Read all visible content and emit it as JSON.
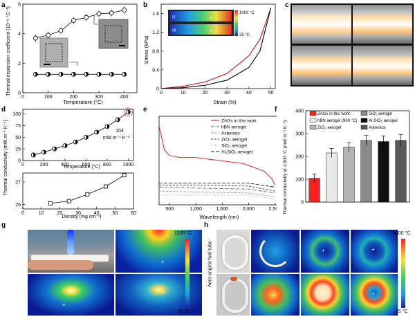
{
  "panel_letters": [
    "a",
    "b",
    "c",
    "d",
    "e",
    "f",
    "g",
    "h"
  ],
  "panel_a": {
    "ylabel": "Thermal expansion coefficient (10⁻⁶ °C⁻¹)",
    "xlabel": "Temperature (°C)"
  },
  "panel_b": {
    "ylabel": "Stress (kPa)",
    "xlabel": "Strain (%)",
    "cbar_max": "1000 °C",
    "cbar_min": "25 °C",
    "inset_tags": [
      "(i)",
      "(ii)"
    ]
  },
  "panel_d": {
    "top_xlabel": "Temperature (°C)",
    "bottom_xlabel": "Density (mg cm⁻³)",
    "ylabel": "Thermal conductivity (mW m⁻¹ K⁻¹)",
    "annotation_value": "104",
    "annotation_unit": "mW m⁻¹ K⁻¹"
  },
  "panel_e": {
    "xlabel": "Wavelength (nm)",
    "legend": [
      "ZAGs in this work",
      "hBN aerogel",
      "Asbestos",
      "ZrO₂ aerogel",
      "SiO₂ aerogel",
      "Al₂SiO₅ aerogel"
    ]
  },
  "panel_f": {
    "ylabel": "Thermal conductivity at 1,000 °C (mW m⁻¹ K⁻¹)",
    "legend": [
      "ZAGs in this work",
      "hBN aerogel (900 °C)",
      "ZrO₂ aerogel",
      "SiO₂ aerogel",
      "Al₂SiO₅ aerogel",
      "Asbestos"
    ]
  },
  "panel_g": {
    "cbar_max": "1300 °C",
    "cbar_min": "25 °C"
  },
  "panel_h": {
    "cbar_max": "1300 °C",
    "cbar_min": "25 °C",
    "side_label": "Aero engine fuel tube"
  },
  "chart_data": [
    {
      "type": "line",
      "panel": "a",
      "xlabel": "Temperature (°C)",
      "ylabel": "Thermal expansion coefficient (10⁻⁶ °C⁻¹)",
      "xlim": [
        0,
        450
      ],
      "ylim": [
        0,
        6
      ],
      "xticks": [
        0,
        100,
        200,
        300,
        400
      ],
      "yticks": [
        0,
        2,
        4,
        6
      ],
      "series": [
        {
          "x": [
            50,
            100,
            150,
            200,
            250,
            300,
            350,
            400
          ],
          "y": [
            3.7,
            3.9,
            4.2,
            4.9,
            5.1,
            5.35,
            5.4,
            5.6
          ]
        },
        {
          "x": [
            50,
            100,
            150,
            200,
            250,
            300,
            350,
            400
          ],
          "y": [
            1.25,
            1.25,
            1.25,
            1.25,
            1.25,
            1.25,
            1.25,
            1.25
          ]
        }
      ]
    },
    {
      "type": "line",
      "panel": "b",
      "xlabel": "Strain (%)",
      "ylabel": "Stress (kPa)",
      "xlim": [
        0,
        52
      ],
      "ylim": [
        0,
        1.8
      ],
      "xticks": [
        0,
        10,
        20,
        30,
        40,
        50
      ],
      "yticks": [
        0,
        0.4,
        0.8,
        1.2,
        1.6
      ],
      "series": [
        {
          "x": [
            0,
            10,
            20,
            30,
            40,
            45,
            50
          ],
          "y": [
            0,
            0.05,
            0.14,
            0.32,
            0.7,
            1.05,
            1.72
          ]
        },
        {
          "x": [
            0,
            10,
            20,
            30,
            40,
            45,
            50
          ],
          "y": [
            0,
            0.02,
            0.07,
            0.18,
            0.45,
            0.8,
            1.72
          ]
        }
      ]
    },
    {
      "type": "line",
      "panel": "d-top",
      "xlabel": "Temperature (°C)",
      "xlim": [
        0,
        1050
      ],
      "ylim": [
        0,
        110
      ],
      "xticks": [
        0,
        200,
        400,
        600,
        800,
        1000
      ],
      "yticks": [
        0,
        25,
        50,
        75,
        100
      ],
      "series": [
        {
          "x": [
            100,
            200,
            300,
            400,
            500,
            600,
            700,
            800,
            900,
            1000
          ],
          "y": [
            12,
            18,
            25,
            32,
            40,
            50,
            61,
            73,
            88,
            104
          ]
        }
      ]
    },
    {
      "type": "line",
      "panel": "d-bottom",
      "xlabel": "Density (mg cm⁻³)",
      "xlim": [
        0,
        60
      ],
      "ylim": [
        25.8,
        27.4
      ],
      "xticks": [
        0,
        10,
        20,
        30,
        40,
        50,
        60
      ],
      "yticks": [
        26,
        27
      ],
      "series": [
        {
          "x": [
            15,
            25,
            35,
            45,
            55
          ],
          "y": [
            26.05,
            26.15,
            26.45,
            26.8,
            27.3
          ]
        }
      ]
    },
    {
      "type": "line",
      "panel": "e",
      "xlabel": "Wavelength (nm)",
      "xlim": [
        300,
        2600
      ],
      "ylim": [
        0,
        45
      ],
      "xticks": [
        500,
        1000,
        1500,
        2000,
        2500
      ],
      "xtick_labels": [
        "500",
        "1,000",
        "1,500",
        "2,000",
        "2,500"
      ],
      "series": [
        {
          "name": "ZAGs in this work",
          "x": [
            300,
            400,
            500,
            700,
            1000,
            1300,
            1600,
            1900,
            2100,
            2300,
            2450,
            2500
          ],
          "y": [
            40,
            28,
            25,
            24,
            24,
            23,
            22,
            21,
            19,
            17,
            13,
            10
          ]
        },
        {
          "name": "hBN aerogel",
          "x": [
            300,
            1000,
            2000,
            2500
          ],
          "y": [
            9,
            8.5,
            8,
            6
          ]
        },
        {
          "name": "Asbestos",
          "x": [
            300,
            1000,
            2000,
            2500
          ],
          "y": [
            7,
            6.5,
            6,
            4
          ]
        },
        {
          "name": "ZrO₂ aerogel",
          "x": [
            300,
            1000,
            2000,
            2500
          ],
          "y": [
            10,
            10,
            9.5,
            7
          ]
        },
        {
          "name": "SiO₂ aerogel",
          "x": [
            300,
            1000,
            2000,
            2500
          ],
          "y": [
            5,
            5,
            5,
            3
          ]
        },
        {
          "name": "Al₂SiO₅ aerogel",
          "x": [
            300,
            1000,
            2000,
            2500
          ],
          "y": [
            11,
            11,
            11,
            9
          ]
        }
      ]
    },
    {
      "type": "bar",
      "panel": "f",
      "ylabel": "Thermal conductivity at 1,000 °C (mW m⁻¹ K⁻¹)",
      "ylim": [
        0,
        400
      ],
      "yticks": [
        0,
        100,
        200,
        300,
        400
      ],
      "categories": [
        "ZAGs in this work",
        "hBN aerogel (900 °C)",
        "ZrO₂ aerogel",
        "SiO₂ aerogel",
        "Al₂SiO₅ aerogel",
        "Asbestos"
      ],
      "values": [
        104,
        215,
        240,
        270,
        265,
        270
      ],
      "errors": [
        18,
        20,
        20,
        22,
        25,
        25
      ],
      "colors": [
        "#ff1f1f",
        "#e8e8e8",
        "#b4b4b4",
        "#8a8a8a",
        "#111111",
        "#5a5a5a"
      ]
    }
  ]
}
